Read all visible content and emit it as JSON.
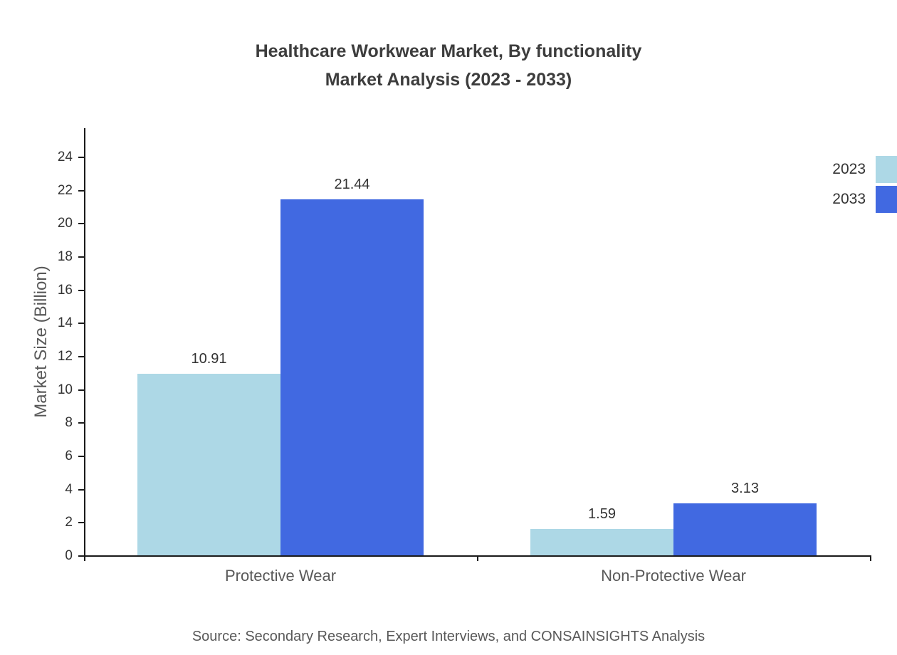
{
  "title": {
    "line1": "Healthcare Workwear Market, By functionality",
    "line2": "Market Analysis (2023 - 2033)"
  },
  "source": "Source: Secondary Research, Expert Interviews, and CONSAINSIGHTS Analysis",
  "chart_data": {
    "type": "bar",
    "categories": [
      "Protective Wear",
      "Non-Protective Wear"
    ],
    "series": [
      {
        "name": "2023",
        "color": "#ADD8E6",
        "values": [
          10.91,
          1.59
        ]
      },
      {
        "name": "2033",
        "color": "#4169E1",
        "values": [
          21.44,
          3.13
        ]
      }
    ],
    "value_labels": [
      [
        "10.91",
        "1.59"
      ],
      [
        "21.44",
        "3.13"
      ]
    ],
    "title": "Healthcare Workwear Market, By functionality Market Analysis (2023 - 2033)",
    "xlabel": "",
    "ylabel": "Market Size (Billion)",
    "ylim": [
      0,
      24
    ],
    "ytick_step": 2,
    "grid": false,
    "legend_position": "top-right"
  }
}
